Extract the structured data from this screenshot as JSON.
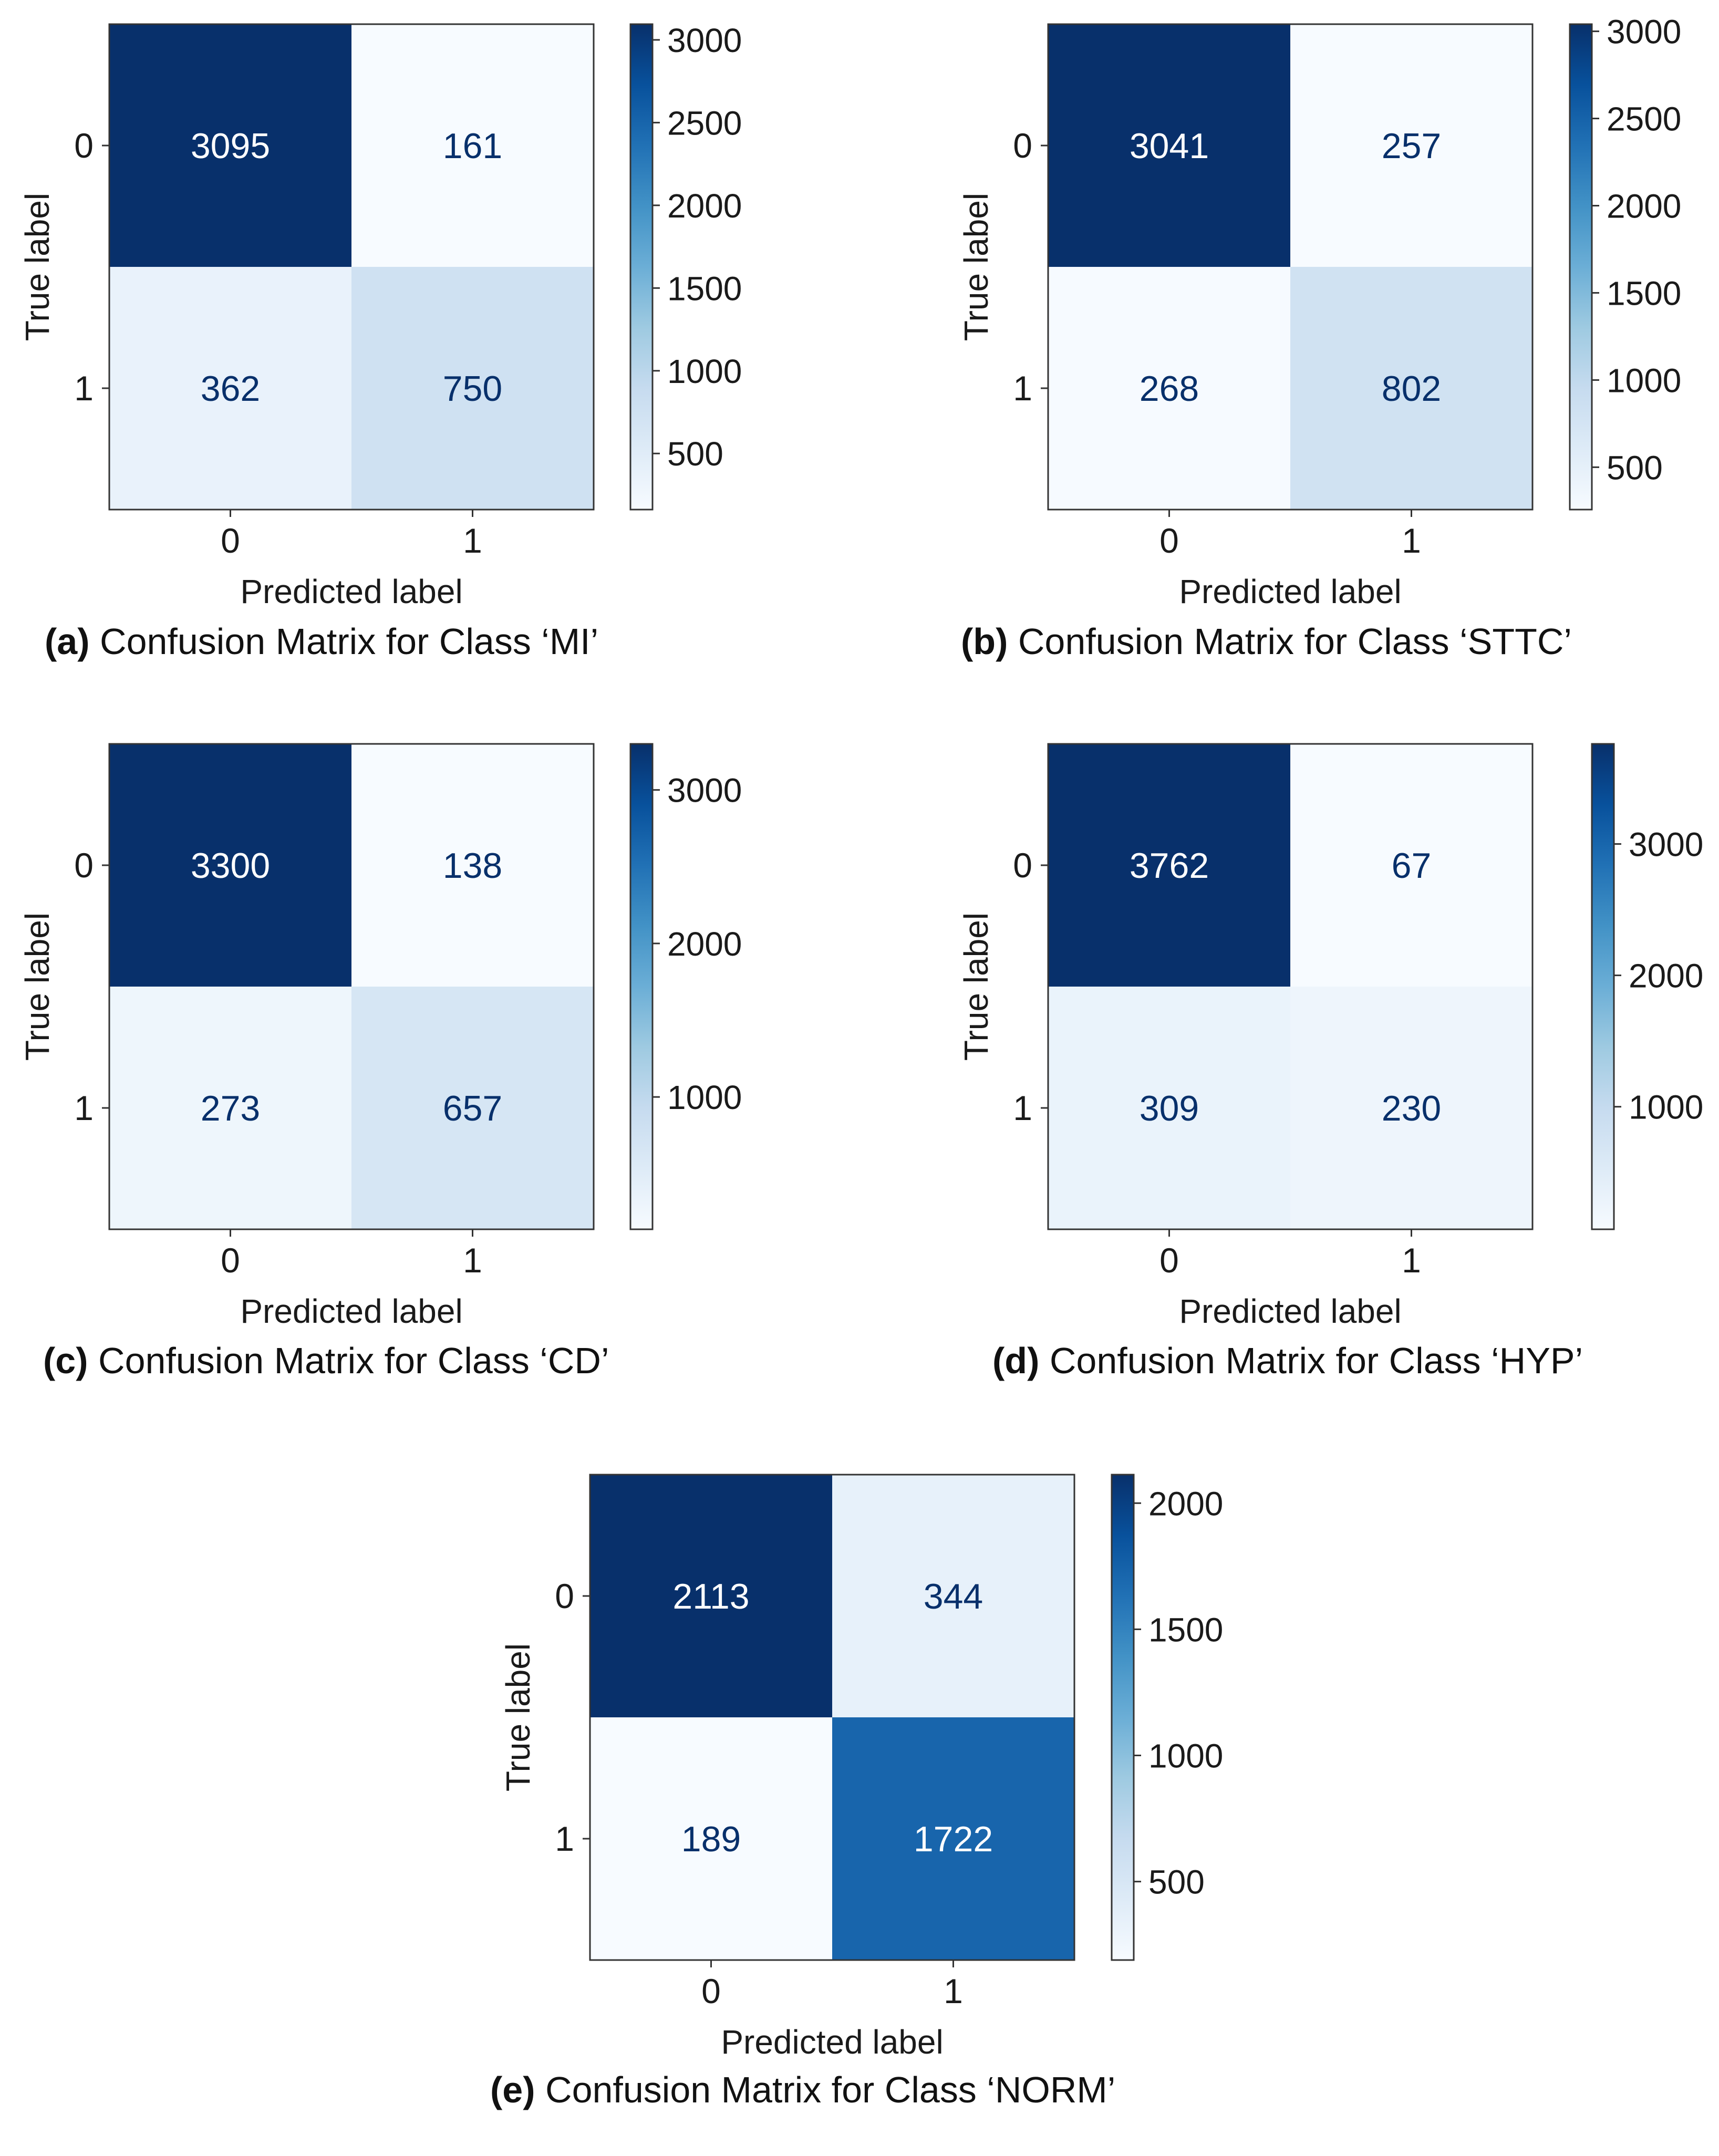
{
  "figure": {
    "panels": [
      {
        "tag": "(a)",
        "caption": "Confusion Matrix for Class ‘MI’"
      },
      {
        "tag": "(b)",
        "caption": "Confusion Matrix for Class ‘STTC’"
      },
      {
        "tag": "(c)",
        "caption": "Confusion Matrix for Class ‘CD’"
      },
      {
        "tag": "(d)",
        "caption": "Confusion Matrix for Class ‘HYP’"
      },
      {
        "tag": "(e)",
        "caption": "Confusion Matrix for Class ‘NORM’"
      }
    ]
  },
  "chart_data": [
    {
      "type": "heatmap",
      "id": "a",
      "class_name": "MI",
      "xlabel": "Predicted label",
      "ylabel": "True label",
      "x_ticks": [
        "0",
        "1"
      ],
      "y_ticks": [
        "0",
        "1"
      ],
      "matrix": [
        [
          3095,
          161
        ],
        [
          362,
          750
        ]
      ],
      "colormap": "Blues",
      "colorbar": {
        "ticks": [
          500,
          1000,
          1500,
          2000,
          2500,
          3000
        ],
        "range": [
          161,
          3095
        ]
      }
    },
    {
      "type": "heatmap",
      "id": "b",
      "class_name": "STTC",
      "xlabel": "Predicted label",
      "ylabel": "True label",
      "x_ticks": [
        "0",
        "1"
      ],
      "y_ticks": [
        "0",
        "1"
      ],
      "matrix": [
        [
          3041,
          257
        ],
        [
          268,
          802
        ]
      ],
      "colormap": "Blues",
      "colorbar": {
        "ticks": [
          500,
          1000,
          1500,
          2000,
          2500,
          3000
        ],
        "range": [
          257,
          3041
        ]
      }
    },
    {
      "type": "heatmap",
      "id": "c",
      "class_name": "CD",
      "xlabel": "Predicted label",
      "ylabel": "True label",
      "x_ticks": [
        "0",
        "1"
      ],
      "y_ticks": [
        "0",
        "1"
      ],
      "matrix": [
        [
          3300,
          138
        ],
        [
          273,
          657
        ]
      ],
      "colormap": "Blues",
      "colorbar": {
        "ticks": [
          1000,
          2000,
          3000
        ],
        "range": [
          138,
          3300
        ]
      }
    },
    {
      "type": "heatmap",
      "id": "d",
      "class_name": "HYP",
      "xlabel": "Predicted label",
      "ylabel": "True label",
      "x_ticks": [
        "0",
        "1"
      ],
      "y_ticks": [
        "0",
        "1"
      ],
      "matrix": [
        [
          3762,
          67
        ],
        [
          309,
          230
        ]
      ],
      "colormap": "Blues",
      "colorbar": {
        "ticks": [
          1000,
          2000,
          3000
        ],
        "range": [
          67,
          3762
        ]
      }
    },
    {
      "type": "heatmap",
      "id": "e",
      "class_name": "NORM",
      "xlabel": "Predicted label",
      "ylabel": "True label",
      "x_ticks": [
        "0",
        "1"
      ],
      "y_ticks": [
        "0",
        "1"
      ],
      "matrix": [
        [
          2113,
          344
        ],
        [
          189,
          1722
        ]
      ],
      "colormap": "Blues",
      "colorbar": {
        "ticks": [
          500,
          1000,
          1500,
          2000
        ],
        "range": [
          189,
          2113
        ]
      }
    }
  ]
}
